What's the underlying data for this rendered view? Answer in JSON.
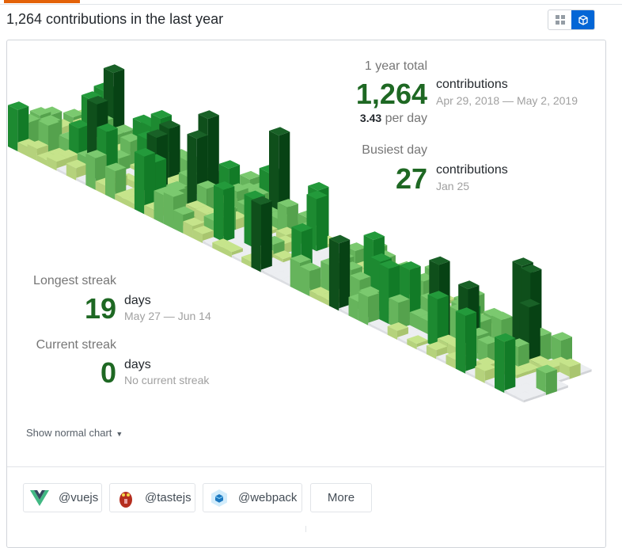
{
  "header": {
    "title": "1,264 contributions in the last year"
  },
  "view_toggle": {
    "grid_icon": "grid-icon",
    "cube_icon": "cube-icon",
    "active": "cube"
  },
  "totals": {
    "label": "1 year total",
    "count": "1,264",
    "unit": "contributions",
    "range": "Apr 29, 2018 — May 2, 2019",
    "per_day_value": "3.43",
    "per_day_label": "per day"
  },
  "busiest": {
    "label": "Busiest day",
    "count": "27",
    "unit": "contributions",
    "date": "Jan 25"
  },
  "longest": {
    "label": "Longest streak",
    "count": "19",
    "unit": "days",
    "range": "May 27 — Jun 14"
  },
  "current": {
    "label": "Current streak",
    "count": "0",
    "unit": "days",
    "range": "No current streak"
  },
  "show_normal": "Show normal chart",
  "orgs": [
    {
      "label": "@vuejs",
      "icon": "vue-logo-icon"
    },
    {
      "label": "@tastejs",
      "icon": "tastejs-logo-icon"
    },
    {
      "label": "@webpack",
      "icon": "webpack-logo-icon"
    }
  ],
  "more_label": "More",
  "colors": {
    "empty": "#e4e6ea",
    "l1": "#c6e48b",
    "l2": "#7bc96f",
    "l3": "#239a3b",
    "l4": "#196127",
    "accent": "#0366d6",
    "big_number": "#1e6823"
  },
  "chart_data": {
    "type": "heatmap",
    "title": "Isometric contribution calendar",
    "total": 1264,
    "max_day": 27,
    "weeks": 53,
    "days_per_week": 7
  }
}
